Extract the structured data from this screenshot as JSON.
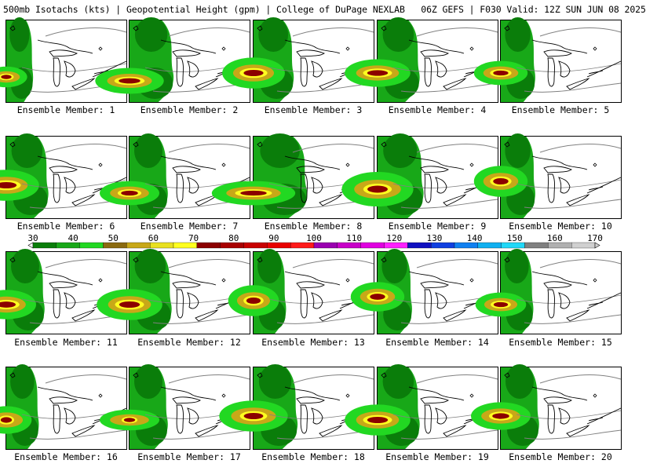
{
  "header": {
    "title": "500mb Isotachs (kts) | Geopotential Height (gpm) | College of DuPage NEXLAB   06Z GEFS | F030 Valid: 12Z SUN JUN 08 2025"
  },
  "map_region": "Great Lakes / Northeastern United States",
  "members": [
    {
      "label": "Ensemble Member: 1"
    },
    {
      "label": "Ensemble Member: 2"
    },
    {
      "label": "Ensemble Member: 3"
    },
    {
      "label": "Ensemble Member: 4"
    },
    {
      "label": "Ensemble Member: 5"
    },
    {
      "label": "Ensemble Member: 6"
    },
    {
      "label": "Ensemble Member: 7"
    },
    {
      "label": "Ensemble Member: 8"
    },
    {
      "label": "Ensemble Member: 9"
    },
    {
      "label": "Ensemble Member: 10"
    },
    {
      "label": "Ensemble Member: 11"
    },
    {
      "label": "Ensemble Member: 12"
    },
    {
      "label": "Ensemble Member: 13"
    },
    {
      "label": "Ensemble Member: 14"
    },
    {
      "label": "Ensemble Member: 15"
    },
    {
      "label": "Ensemble Member: 16"
    },
    {
      "label": "Ensemble Member: 17"
    },
    {
      "label": "Ensemble Member: 18"
    },
    {
      "label": "Ensemble Member: 19"
    },
    {
      "label": "Ensemble Member: 20"
    }
  ],
  "colorbar": {
    "labels": [
      "30",
      "40",
      "50",
      "60",
      "70",
      "80",
      "90",
      "100",
      "110",
      "120",
      "130",
      "140",
      "150",
      "160",
      "170"
    ],
    "colors": [
      "#0a7d0a",
      "#18a818",
      "#22d822",
      "#8a6a10",
      "#c8a818",
      "#e8e020",
      "#ffff20",
      "#8b0000",
      "#a80000",
      "#c80000",
      "#e80000",
      "#ff1a1a",
      "#9a00b0",
      "#c800c8",
      "#e000e0",
      "#ff20ff",
      "#1010c0",
      "#1040e0",
      "#1080f0",
      "#10b0f0",
      "#20d8f8",
      "#808080",
      "#b0b0b0",
      "#d0d0d0"
    ]
  },
  "palette": {
    "wind_30": "#0a7d0a",
    "wind_40": "#18a818",
    "wind_50": "#22d822",
    "wind_60": "#c8a818",
    "wind_70": "#ffff20",
    "wind_80": "#8b0000",
    "coast": "#000000",
    "height_contour": "#808080"
  }
}
